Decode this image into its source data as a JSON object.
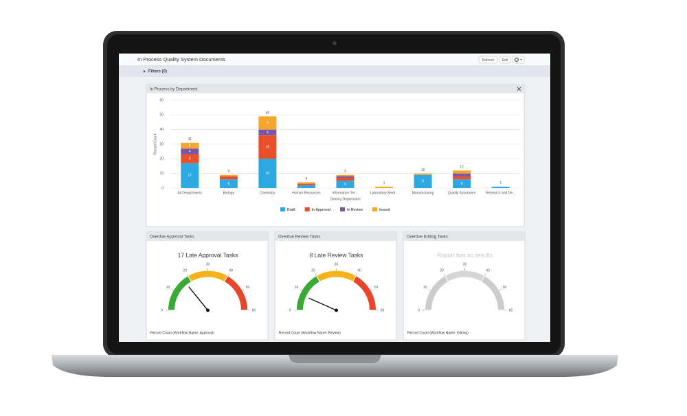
{
  "header": {
    "title": "In Process Quality System Documents",
    "buttons": [
      "Refresh",
      "Edit"
    ]
  },
  "filters": "Filters (0)",
  "chart_data": [
    {
      "type": "bar",
      "title": "In Process by Department",
      "x_label": "Owning Department",
      "y_label": "Record Count",
      "categories": [
        "All Departments",
        "Biology",
        "Chemistry",
        "Human Resources",
        "Information Tec...",
        "Laboratory Medi...",
        "Manufacturing",
        "Quality Assurance",
        "Research and De..."
      ],
      "series": [
        {
          "name": "Draft",
          "color": "#2ea8e2",
          "values": [
            17,
            6,
            20,
            2,
            5,
            0,
            9,
            6,
            1
          ]
        },
        {
          "name": "In Approval",
          "color": "#e8502a",
          "values": [
            6,
            2,
            16,
            1,
            2,
            0,
            0,
            2,
            0
          ]
        },
        {
          "name": "In Review",
          "color": "#7b55a7",
          "values": [
            4,
            0,
            4,
            0,
            1,
            0,
            0,
            2,
            0
          ]
        },
        {
          "name": "Issued",
          "color": "#f5a62b",
          "values": [
            4,
            1,
            9,
            1,
            1,
            1,
            1,
            2,
            0
          ]
        }
      ],
      "total_labels": [
        31,
        9,
        49,
        4,
        9,
        1,
        10,
        12,
        1
      ],
      "ylim": [
        0,
        60
      ],
      "yticks": [
        0,
        10,
        20,
        30,
        40,
        50,
        60
      ],
      "grid": true,
      "legend": "bottom"
    },
    {
      "type": "gauge",
      "panel_title": "Overdue Approval Tasks",
      "title": "17 Late Approval Tasks",
      "value": 17,
      "ylim": [
        0,
        60
      ],
      "yticks": [
        0,
        10,
        20,
        30,
        40,
        50,
        60
      ],
      "bands": [
        {
          "from": 0,
          "to": 20,
          "color": "#3aaa35"
        },
        {
          "from": 20,
          "to": 40,
          "color": "#f6b319"
        },
        {
          "from": 40,
          "to": 60,
          "color": "#e8462a"
        }
      ],
      "footer": "Record Count (Workflow Name: Approval)"
    },
    {
      "type": "gauge",
      "panel_title": "Overdue Review Tasks",
      "title": "8 Late Review Tasks",
      "value": 8,
      "ylim": [
        0,
        60
      ],
      "yticks": [
        0,
        10,
        20,
        30,
        40,
        50,
        60
      ],
      "bands": [
        {
          "from": 0,
          "to": 20,
          "color": "#3aaa35"
        },
        {
          "from": 20,
          "to": 40,
          "color": "#f6b319"
        },
        {
          "from": 40,
          "to": 60,
          "color": "#e8462a"
        }
      ],
      "footer": "Record Count (Workflow Name: Review)"
    },
    {
      "type": "gauge",
      "panel_title": "Overdue Editing Tasks",
      "title": "Report has no results",
      "ylim": [
        0,
        60
      ],
      "yticks": [
        0,
        10,
        20,
        30,
        40,
        50,
        60
      ],
      "bands": [
        {
          "from": 0,
          "to": 20,
          "color": "#cccccc"
        },
        {
          "from": 20,
          "to": 40,
          "color": "#d6d6d6"
        },
        {
          "from": 40,
          "to": 60,
          "color": "#cccccc"
        }
      ],
      "footer": "Record Count (Workflow Name: Editing)"
    }
  ]
}
